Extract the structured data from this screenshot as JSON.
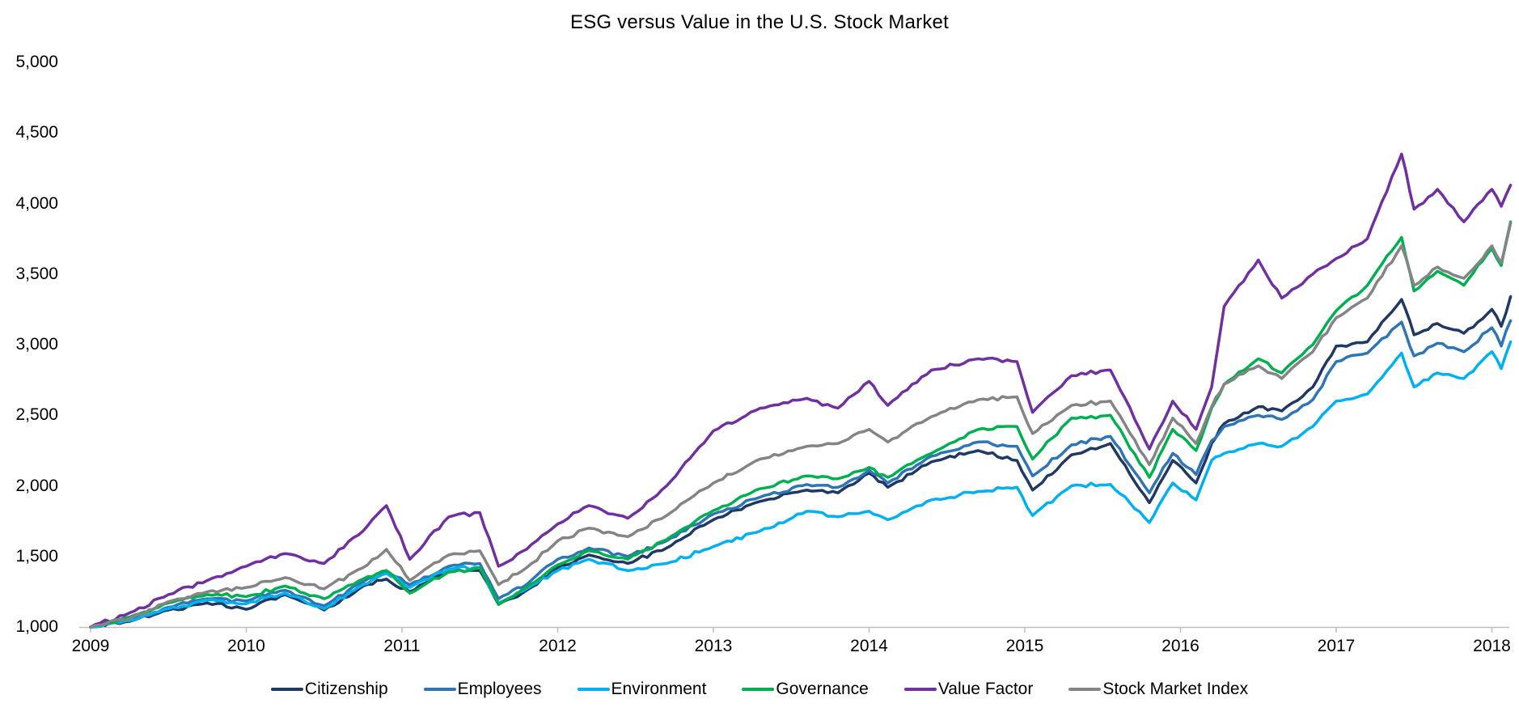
{
  "title": "ESG versus Value in the U.S. Stock Market",
  "chart_data": {
    "type": "line",
    "title": "ESG versus Value in the U.S. Stock Market",
    "xlabel": "",
    "ylabel": "",
    "grid": false,
    "legend_position": "bottom",
    "xlim": [
      2009,
      2018.25
    ],
    "ylim": [
      1000,
      5000
    ],
    "x_ticks": [
      2009,
      2010,
      2011,
      2012,
      2013,
      2014,
      2015,
      2016,
      2017,
      2018
    ],
    "x_tick_labels": [
      "2009",
      "2010",
      "2011",
      "2012",
      "2013",
      "2014",
      "2015",
      "2016",
      "2017",
      "2018"
    ],
    "y_ticks": [
      1000,
      1500,
      2000,
      2500,
      3000,
      3500,
      4000,
      4500,
      5000
    ],
    "y_tick_labels": [
      "1,000",
      "1,500",
      "2,000",
      "2,500",
      "3,000",
      "3,500",
      "4,000",
      "4,500",
      "5,000"
    ],
    "x": [
      2009.0,
      2009.25,
      2009.5,
      2009.75,
      2010.0,
      2010.25,
      2010.5,
      2010.75,
      2010.9,
      2011.05,
      2011.3,
      2011.5,
      2011.62,
      2011.8,
      2012.0,
      2012.2,
      2012.45,
      2012.7,
      2013.0,
      2013.3,
      2013.6,
      2013.8,
      2014.0,
      2014.12,
      2014.4,
      2014.7,
      2014.95,
      2015.05,
      2015.3,
      2015.55,
      2015.8,
      2015.95,
      2016.1,
      2016.2,
      2016.28,
      2016.5,
      2016.65,
      2016.85,
      2017.0,
      2017.2,
      2017.42,
      2017.5,
      2017.65,
      2017.82,
      2018.0,
      2018.06,
      2018.12
    ],
    "series": [
      {
        "name": "Citizenship",
        "color": "#1F3864",
        "values": [
          1000,
          1040,
          1120,
          1170,
          1125,
          1230,
          1120,
          1290,
          1340,
          1250,
          1390,
          1400,
          1160,
          1260,
          1420,
          1510,
          1450,
          1560,
          1760,
          1890,
          1970,
          1950,
          2090,
          1990,
          2170,
          2250,
          2180,
          1970,
          2220,
          2300,
          1880,
          2180,
          2020,
          2300,
          2440,
          2560,
          2530,
          2700,
          2990,
          3020,
          3320,
          3070,
          3150,
          3080,
          3250,
          3130,
          3340
        ]
      },
      {
        "name": "Employees",
        "color": "#2E75B6",
        "values": [
          1000,
          1050,
          1140,
          1200,
          1185,
          1260,
          1150,
          1320,
          1400,
          1300,
          1430,
          1450,
          1200,
          1300,
          1480,
          1560,
          1500,
          1610,
          1800,
          1920,
          2010,
          1990,
          2110,
          2020,
          2210,
          2310,
          2280,
          2070,
          2290,
          2350,
          1950,
          2230,
          2080,
          2320,
          2420,
          2500,
          2470,
          2610,
          2880,
          2940,
          3160,
          2920,
          3010,
          2950,
          3120,
          2990,
          3170
        ]
      },
      {
        "name": "Environment",
        "color": "#00B0F0",
        "values": [
          1000,
          1045,
          1130,
          1190,
          1165,
          1240,
          1130,
          1300,
          1380,
          1280,
          1410,
          1420,
          1170,
          1270,
          1400,
          1480,
          1400,
          1450,
          1570,
          1680,
          1820,
          1780,
          1820,
          1760,
          1900,
          1960,
          1990,
          1790,
          2000,
          2010,
          1740,
          2020,
          1900,
          2180,
          2230,
          2300,
          2280,
          2420,
          2600,
          2650,
          2940,
          2700,
          2800,
          2760,
          2950,
          2830,
          3020
        ]
      },
      {
        "name": "Governance",
        "color": "#00B050",
        "values": [
          1000,
          1070,
          1170,
          1230,
          1215,
          1290,
          1200,
          1340,
          1400,
          1240,
          1390,
          1420,
          1160,
          1280,
          1440,
          1540,
          1480,
          1620,
          1825,
          1980,
          2070,
          2050,
          2130,
          2060,
          2230,
          2400,
          2420,
          2190,
          2480,
          2500,
          2060,
          2400,
          2250,
          2550,
          2720,
          2900,
          2800,
          3000,
          3240,
          3420,
          3760,
          3380,
          3520,
          3420,
          3680,
          3560,
          3870
        ]
      },
      {
        "name": "Value Factor",
        "color": "#7030A0",
        "values": [
          1000,
          1100,
          1230,
          1330,
          1430,
          1520,
          1450,
          1680,
          1860,
          1480,
          1780,
          1810,
          1430,
          1550,
          1730,
          1860,
          1770,
          2000,
          2390,
          2550,
          2620,
          2550,
          2740,
          2570,
          2820,
          2900,
          2880,
          2520,
          2780,
          2820,
          2260,
          2600,
          2400,
          2700,
          3270,
          3600,
          3330,
          3500,
          3610,
          3750,
          4350,
          3960,
          4100,
          3870,
          4100,
          3980,
          4130
        ]
      },
      {
        "name": "Stock Market Index",
        "color": "#848484",
        "values": [
          1000,
          1060,
          1180,
          1250,
          1280,
          1350,
          1270,
          1420,
          1550,
          1330,
          1510,
          1540,
          1300,
          1420,
          1610,
          1700,
          1640,
          1790,
          2020,
          2190,
          2280,
          2300,
          2400,
          2310,
          2490,
          2610,
          2630,
          2370,
          2570,
          2600,
          2150,
          2480,
          2300,
          2560,
          2720,
          2850,
          2760,
          2950,
          3190,
          3330,
          3700,
          3420,
          3550,
          3470,
          3700,
          3580,
          3860
        ]
      }
    ],
    "axis_color": "#BFBFBF"
  }
}
